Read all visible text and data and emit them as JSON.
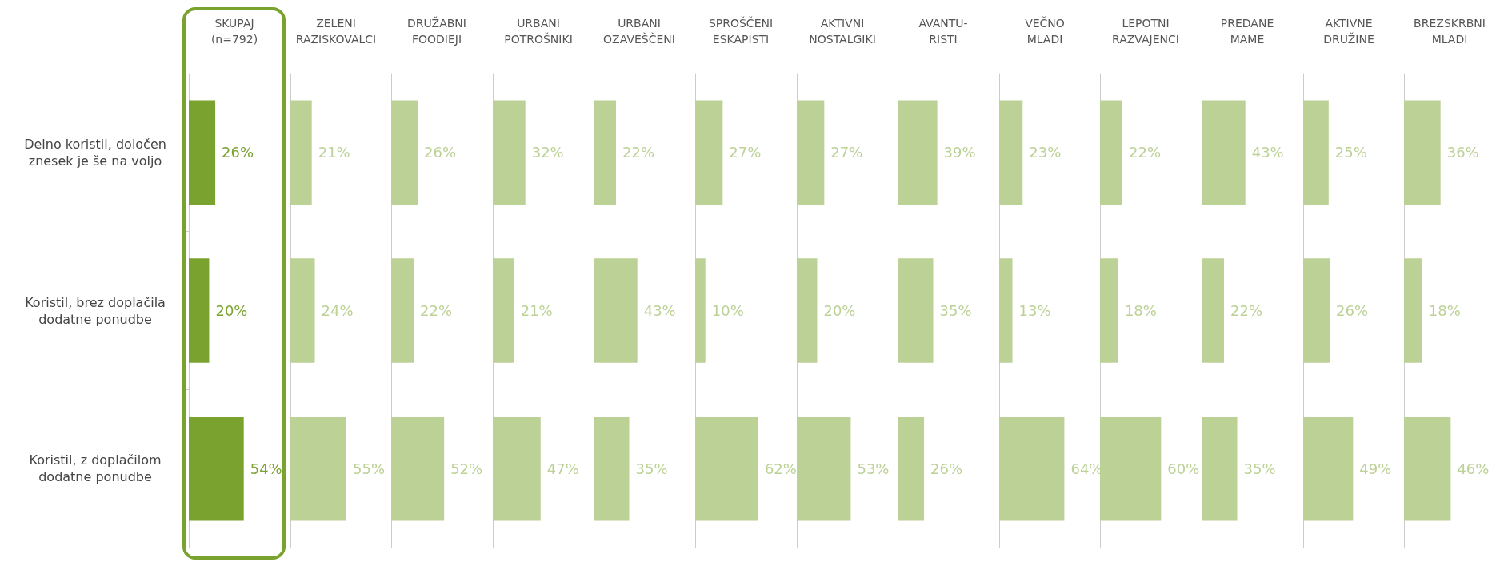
{
  "chart_data": [
    {
      "type": "bar",
      "orientation": "horizontal",
      "title": "SKUPAJ\n(n=792)",
      "categories": [
        "Delno koristil, določen\nznesek je še na voljo",
        "Koristil, brez doplačila\ndodatne ponudbe",
        "Koristil, z doplačilom\ndodatne ponudbe"
      ],
      "values": [
        26,
        20,
        54
      ],
      "value_labels": [
        "26%",
        "20%",
        "54%"
      ],
      "color": "#7aa22f",
      "tick_labels": "y"
    },
    {
      "type": "bar",
      "orientation": "horizontal",
      "title": "ZELENI\nRAZISKOVALCI",
      "categories": [
        null,
        null,
        null
      ],
      "values": [
        21,
        24,
        55
      ],
      "value_labels": [
        "21%",
        "24%",
        "55%"
      ],
      "color": "#bcd196",
      "tick_labels": false
    },
    {
      "type": "bar",
      "orientation": "horizontal",
      "title": "DRUŽABNI\nFOODIEJI",
      "categories": [
        null,
        null,
        null
      ],
      "values": [
        26,
        22,
        52
      ],
      "value_labels": [
        "26%",
        "22%",
        "52%"
      ],
      "color": "#bcd196",
      "tick_labels": false
    },
    {
      "type": "bar",
      "orientation": "horizontal",
      "title": "URBANI\nPOTROŠNIKI",
      "categories": [
        null,
        null,
        null
      ],
      "values": [
        32,
        21,
        47
      ],
      "value_labels": [
        "32%",
        "21%",
        "47%"
      ],
      "color": "#bcd196",
      "tick_labels": false
    },
    {
      "type": "bar",
      "orientation": "horizontal",
      "title": "URBANI\nOZAVEŠČENI",
      "categories": [
        null,
        null,
        null
      ],
      "values": [
        22,
        43,
        35
      ],
      "value_labels": [
        "22%",
        "43%",
        "35%"
      ],
      "color": "#bcd196",
      "tick_labels": false
    },
    {
      "type": "bar",
      "orientation": "horizontal",
      "title": "SPROŠČENI\nESKAPISTI",
      "categories": [
        null,
        null,
        null
      ],
      "values": [
        27,
        10,
        62
      ],
      "value_labels": [
        "27%",
        "10%",
        "62%"
      ],
      "color": "#bcd196",
      "tick_labels": false
    },
    {
      "type": "bar",
      "orientation": "horizontal",
      "title": "AKTIVNI\nNOSTALGIKI",
      "categories": [
        null,
        null,
        null
      ],
      "values": [
        27,
        20,
        53
      ],
      "value_labels": [
        "27%",
        "20%",
        "53%"
      ],
      "color": "#bcd196",
      "tick_labels": false
    },
    {
      "type": "bar",
      "orientation": "horizontal",
      "title": "AVANTU-\nRISTI",
      "categories": [
        null,
        null,
        null
      ],
      "values": [
        39,
        35,
        26
      ],
      "value_labels": [
        "39%",
        "35%",
        "26%"
      ],
      "color": "#bcd196",
      "tick_labels": false
    },
    {
      "type": "bar",
      "orientation": "horizontal",
      "title": "VEČNO\nMLADI",
      "categories": [
        null,
        null,
        null
      ],
      "values": [
        23,
        13,
        64
      ],
      "value_labels": [
        "23%",
        "13%",
        "64%"
      ],
      "color": "#bcd196",
      "tick_labels": false
    },
    {
      "type": "bar",
      "orientation": "horizontal",
      "title": "LEPOTNI\nRAZVAJENCI",
      "categories": [
        null,
        null,
        null
      ],
      "values": [
        22,
        18,
        60
      ],
      "value_labels": [
        "22%",
        "18%",
        "60%"
      ],
      "color": "#bcd196",
      "tick_labels": false
    },
    {
      "type": "bar",
      "orientation": "horizontal",
      "title": "PREDANE\nMAME",
      "categories": [
        null,
        null,
        null
      ],
      "values": [
        43,
        22,
        35
      ],
      "value_labels": [
        "43%",
        "22%",
        "35%"
      ],
      "color": "#bcd196",
      "tick_labels": false
    },
    {
      "type": "bar",
      "orientation": "horizontal",
      "title": "AKTIVNE\nDRUŽINE",
      "categories": [
        null,
        null,
        null
      ],
      "values": [
        25,
        26,
        49
      ],
      "value_labels": [
        "25%",
        "26%",
        "49%"
      ],
      "color": "#bcd196",
      "tick_labels": false
    },
    {
      "type": "bar",
      "orientation": "horizontal",
      "title": "BREZSKRBNI\nMLADI",
      "categories": [
        null,
        null,
        null
      ],
      "values": [
        36,
        18,
        46
      ],
      "value_labels": [
        "36%",
        "18%",
        "46%"
      ],
      "color": "#bcd196",
      "tick_labels": false
    }
  ]
}
